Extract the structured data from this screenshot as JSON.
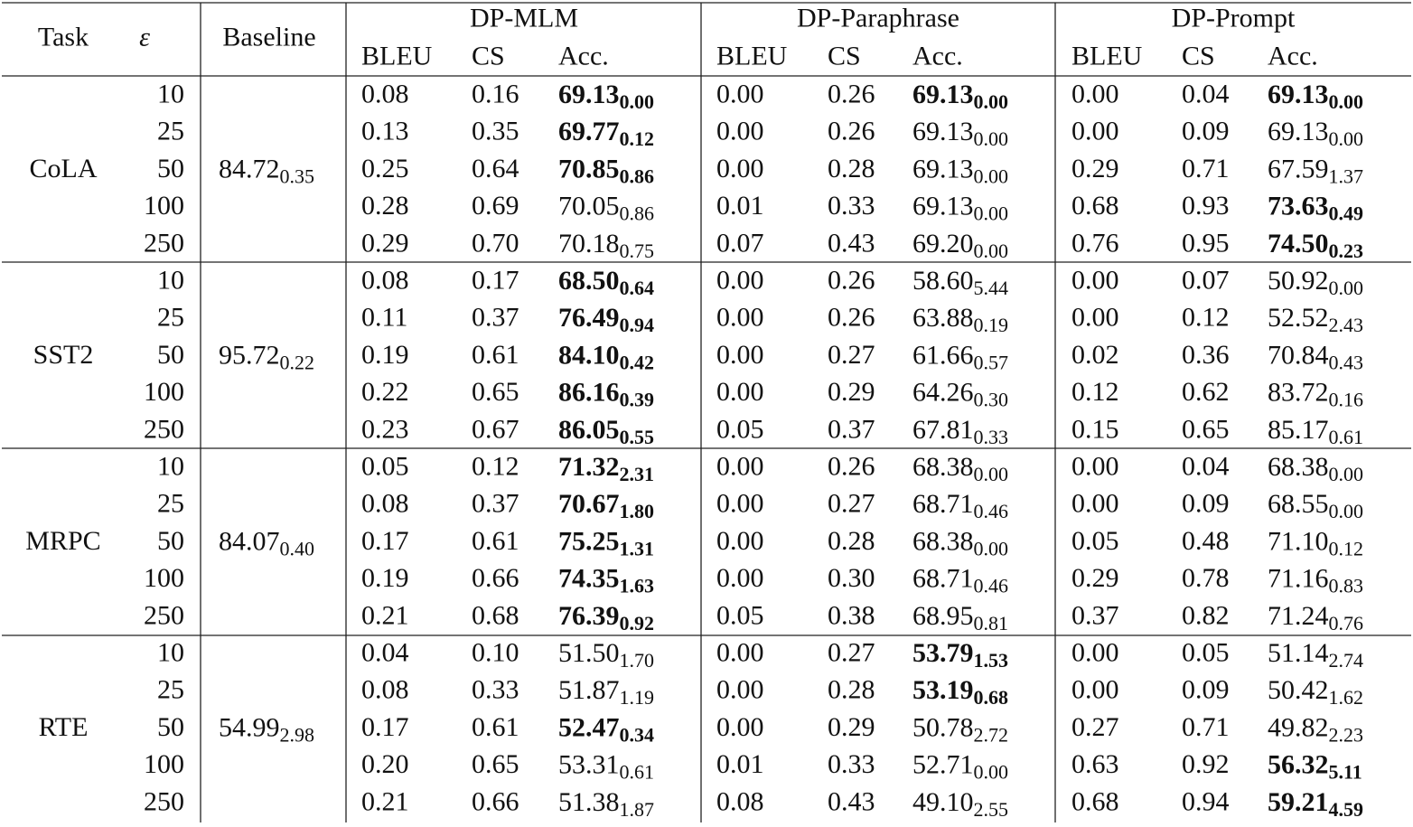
{
  "header": {
    "task": "Task",
    "epsilon": "ε",
    "baseline": "Baseline",
    "methods": [
      "DP-MLM",
      "DP-Paraphrase",
      "DP-Prompt"
    ],
    "metrics": [
      "BLEU",
      "CS",
      "Acc."
    ]
  },
  "groups": [
    {
      "task": "CoLA",
      "baseline": {
        "mean": "84.72",
        "std": "0.35"
      },
      "rows": [
        {
          "epsilon": "10",
          "cells": [
            [
              "0.08",
              "0.16",
              "69.13",
              "0.00",
              true
            ],
            [
              "0.00",
              "0.26",
              "69.13",
              "0.00",
              true
            ],
            [
              "0.00",
              "0.04",
              "69.13",
              "0.00",
              true
            ]
          ]
        },
        {
          "epsilon": "25",
          "cells": [
            [
              "0.13",
              "0.35",
              "69.77",
              "0.12",
              true
            ],
            [
              "0.00",
              "0.26",
              "69.13",
              "0.00",
              false
            ],
            [
              "0.00",
              "0.09",
              "69.13",
              "0.00",
              false
            ]
          ]
        },
        {
          "epsilon": "50",
          "cells": [
            [
              "0.25",
              "0.64",
              "70.85",
              "0.86",
              true
            ],
            [
              "0.00",
              "0.28",
              "69.13",
              "0.00",
              false
            ],
            [
              "0.29",
              "0.71",
              "67.59",
              "1.37",
              false
            ]
          ]
        },
        {
          "epsilon": "100",
          "cells": [
            [
              "0.28",
              "0.69",
              "70.05",
              "0.86",
              false
            ],
            [
              "0.01",
              "0.33",
              "69.13",
              "0.00",
              false
            ],
            [
              "0.68",
              "0.93",
              "73.63",
              "0.49",
              true
            ]
          ]
        },
        {
          "epsilon": "250",
          "cells": [
            [
              "0.29",
              "0.70",
              "70.18",
              "0.75",
              false
            ],
            [
              "0.07",
              "0.43",
              "69.20",
              "0.00",
              false
            ],
            [
              "0.76",
              "0.95",
              "74.50",
              "0.23",
              true
            ]
          ]
        }
      ]
    },
    {
      "task": "SST2",
      "baseline": {
        "mean": "95.72",
        "std": "0.22"
      },
      "rows": [
        {
          "epsilon": "10",
          "cells": [
            [
              "0.08",
              "0.17",
              "68.50",
              "0.64",
              true
            ],
            [
              "0.00",
              "0.26",
              "58.60",
              "5.44",
              false
            ],
            [
              "0.00",
              "0.07",
              "50.92",
              "0.00",
              false
            ]
          ]
        },
        {
          "epsilon": "25",
          "cells": [
            [
              "0.11",
              "0.37",
              "76.49",
              "0.94",
              true
            ],
            [
              "0.00",
              "0.26",
              "63.88",
              "0.19",
              false
            ],
            [
              "0.00",
              "0.12",
              "52.52",
              "2.43",
              false
            ]
          ]
        },
        {
          "epsilon": "50",
          "cells": [
            [
              "0.19",
              "0.61",
              "84.10",
              "0.42",
              true
            ],
            [
              "0.00",
              "0.27",
              "61.66",
              "0.57",
              false
            ],
            [
              "0.02",
              "0.36",
              "70.84",
              "0.43",
              false
            ]
          ]
        },
        {
          "epsilon": "100",
          "cells": [
            [
              "0.22",
              "0.65",
              "86.16",
              "0.39",
              true
            ],
            [
              "0.00",
              "0.29",
              "64.26",
              "0.30",
              false
            ],
            [
              "0.12",
              "0.62",
              "83.72",
              "0.16",
              false
            ]
          ]
        },
        {
          "epsilon": "250",
          "cells": [
            [
              "0.23",
              "0.67",
              "86.05",
              "0.55",
              true
            ],
            [
              "0.05",
              "0.37",
              "67.81",
              "0.33",
              false
            ],
            [
              "0.15",
              "0.65",
              "85.17",
              "0.61",
              false
            ]
          ]
        }
      ]
    },
    {
      "task": "MRPC",
      "baseline": {
        "mean": "84.07",
        "std": "0.40"
      },
      "rows": [
        {
          "epsilon": "10",
          "cells": [
            [
              "0.05",
              "0.12",
              "71.32",
              "2.31",
              true
            ],
            [
              "0.00",
              "0.26",
              "68.38",
              "0.00",
              false
            ],
            [
              "0.00",
              "0.04",
              "68.38",
              "0.00",
              false
            ]
          ]
        },
        {
          "epsilon": "25",
          "cells": [
            [
              "0.08",
              "0.37",
              "70.67",
              "1.80",
              true
            ],
            [
              "0.00",
              "0.27",
              "68.71",
              "0.46",
              false
            ],
            [
              "0.00",
              "0.09",
              "68.55",
              "0.00",
              false
            ]
          ]
        },
        {
          "epsilon": "50",
          "cells": [
            [
              "0.17",
              "0.61",
              "75.25",
              "1.31",
              true
            ],
            [
              "0.00",
              "0.28",
              "68.38",
              "0.00",
              false
            ],
            [
              "0.05",
              "0.48",
              "71.10",
              "0.12",
              false
            ]
          ]
        },
        {
          "epsilon": "100",
          "cells": [
            [
              "0.19",
              "0.66",
              "74.35",
              "1.63",
              true
            ],
            [
              "0.00",
              "0.30",
              "68.71",
              "0.46",
              false
            ],
            [
              "0.29",
              "0.78",
              "71.16",
              "0.83",
              false
            ]
          ]
        },
        {
          "epsilon": "250",
          "cells": [
            [
              "0.21",
              "0.68",
              "76.39",
              "0.92",
              true
            ],
            [
              "0.05",
              "0.38",
              "68.95",
              "0.81",
              false
            ],
            [
              "0.37",
              "0.82",
              "71.24",
              "0.76",
              false
            ]
          ]
        }
      ]
    },
    {
      "task": "RTE",
      "baseline": {
        "mean": "54.99",
        "std": "2.98"
      },
      "rows": [
        {
          "epsilon": "10",
          "cells": [
            [
              "0.04",
              "0.10",
              "51.50",
              "1.70",
              false
            ],
            [
              "0.00",
              "0.27",
              "53.79",
              "1.53",
              true
            ],
            [
              "0.00",
              "0.05",
              "51.14",
              "2.74",
              false
            ]
          ]
        },
        {
          "epsilon": "25",
          "cells": [
            [
              "0.08",
              "0.33",
              "51.87",
              "1.19",
              false
            ],
            [
              "0.00",
              "0.28",
              "53.19",
              "0.68",
              true
            ],
            [
              "0.00",
              "0.09",
              "50.42",
              "1.62",
              false
            ]
          ]
        },
        {
          "epsilon": "50",
          "cells": [
            [
              "0.17",
              "0.61",
              "52.47",
              "0.34",
              true
            ],
            [
              "0.00",
              "0.29",
              "50.78",
              "2.72",
              false
            ],
            [
              "0.27",
              "0.71",
              "49.82",
              "2.23",
              false
            ]
          ]
        },
        {
          "epsilon": "100",
          "cells": [
            [
              "0.20",
              "0.65",
              "53.31",
              "0.61",
              false
            ],
            [
              "0.01",
              "0.33",
              "52.71",
              "0.00",
              false
            ],
            [
              "0.63",
              "0.92",
              "56.32",
              "5.11",
              true
            ]
          ]
        },
        {
          "epsilon": "250",
          "cells": [
            [
              "0.21",
              "0.66",
              "51.38",
              "1.87",
              false
            ],
            [
              "0.08",
              "0.43",
              "49.10",
              "2.55",
              false
            ],
            [
              "0.68",
              "0.94",
              "59.21",
              "4.59",
              true
            ]
          ]
        }
      ]
    }
  ]
}
